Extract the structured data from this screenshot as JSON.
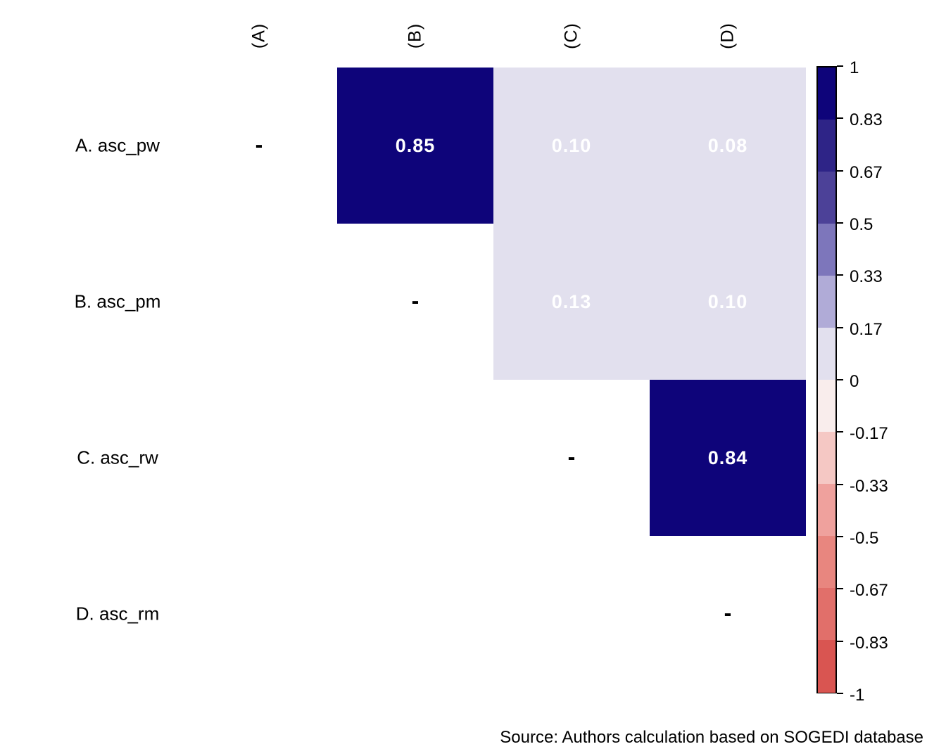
{
  "chart_data": {
    "type": "heatmap",
    "title": "",
    "variables": [
      {
        "id": "A",
        "row_label": "A. asc_pw",
        "col_label": "(A)"
      },
      {
        "id": "B",
        "row_label": "B. asc_pm",
        "col_label": "(B)"
      },
      {
        "id": "C",
        "row_label": "C. asc_rw",
        "col_label": "(C)"
      },
      {
        "id": "D",
        "row_label": "D. asc_rm",
        "col_label": "(D)"
      }
    ],
    "diagonal_marker": "-",
    "cells": [
      {
        "row": 0,
        "col": 1,
        "value": 0.85,
        "label": "0.85",
        "color": "#0e047a",
        "text_color": "#ffffff"
      },
      {
        "row": 0,
        "col": 2,
        "value": 0.1,
        "label": "0.10",
        "color": "#e2e0ee",
        "text_color": "#ffffff"
      },
      {
        "row": 0,
        "col": 3,
        "value": 0.08,
        "label": "0.08",
        "color": "#e2e0ee",
        "text_color": "#ffffff"
      },
      {
        "row": 1,
        "col": 2,
        "value": 0.13,
        "label": "0.13",
        "color": "#e2e0ee",
        "text_color": "#ffffff"
      },
      {
        "row": 1,
        "col": 3,
        "value": 0.1,
        "label": "0.10",
        "color": "#e2e0ee",
        "text_color": "#ffffff"
      },
      {
        "row": 2,
        "col": 3,
        "value": 0.84,
        "label": "0.84",
        "color": "#0e047a",
        "text_color": "#ffffff"
      }
    ],
    "colorbar": {
      "range": [
        1,
        -1
      ],
      "tick_labels": [
        "1",
        "0.83",
        "0.67",
        "0.5",
        "0.33",
        "0.17",
        "0",
        "-0.17",
        "-0.33",
        "-0.5",
        "-0.67",
        "-0.83",
        "-1"
      ],
      "segment_colors_top_to_bottom": [
        "#0e047a",
        "#2e2487",
        "#4c4198",
        "#7d76bb",
        "#b0abd7",
        "#e2e0ee",
        "#f9edec",
        "#f5c8c4",
        "#efa19d",
        "#e8867f",
        "#e16f6a",
        "#d95551"
      ]
    },
    "source_note": "Source: Authors calculation based on SOGEDI database"
  }
}
